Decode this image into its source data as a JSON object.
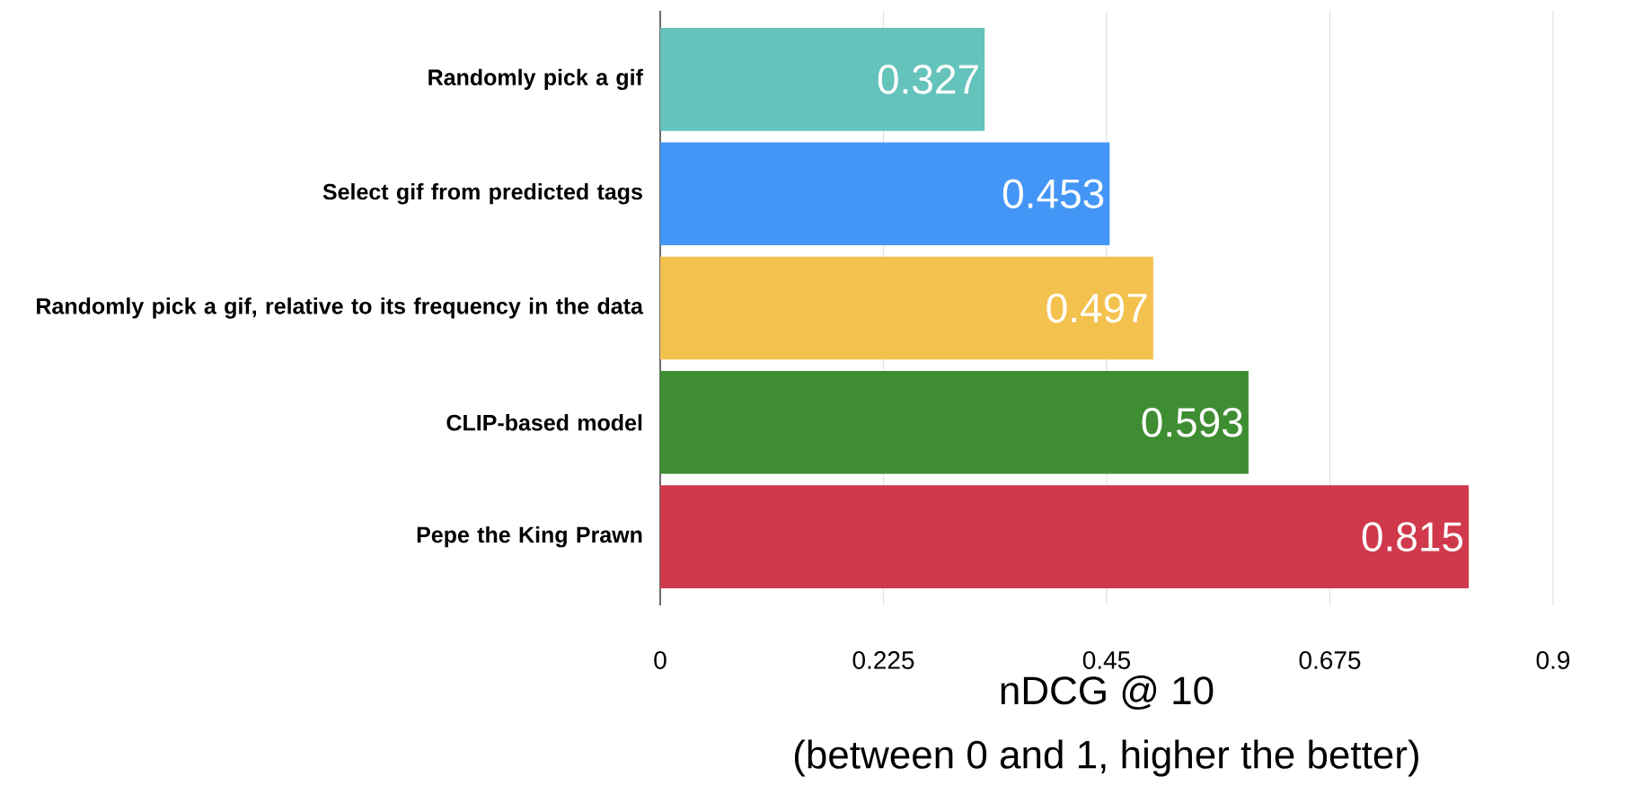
{
  "chart_data": {
    "type": "bar",
    "orientation": "horizontal",
    "categories": [
      "Randomly pick a gif",
      "Select gif from predicted tags",
      "Randomly pick a gif, relative to its frequency in the data",
      "CLIP-based model",
      "Pepe the King Prawn"
    ],
    "values": [
      0.327,
      0.453,
      0.497,
      0.593,
      0.815
    ],
    "colors": [
      "#64c3bb",
      "#4496f6",
      "#f3c14d",
      "#3f8d32",
      "#d0394b"
    ],
    "xlim": [
      0,
      0.9
    ],
    "xticks": [
      0,
      0.225,
      0.45,
      0.675,
      0.9
    ],
    "xlabel": "nDCG @ 10",
    "annotations": [
      "(between 0 and 1, higher the better)"
    ],
    "data_labels": true,
    "grid": "x"
  }
}
